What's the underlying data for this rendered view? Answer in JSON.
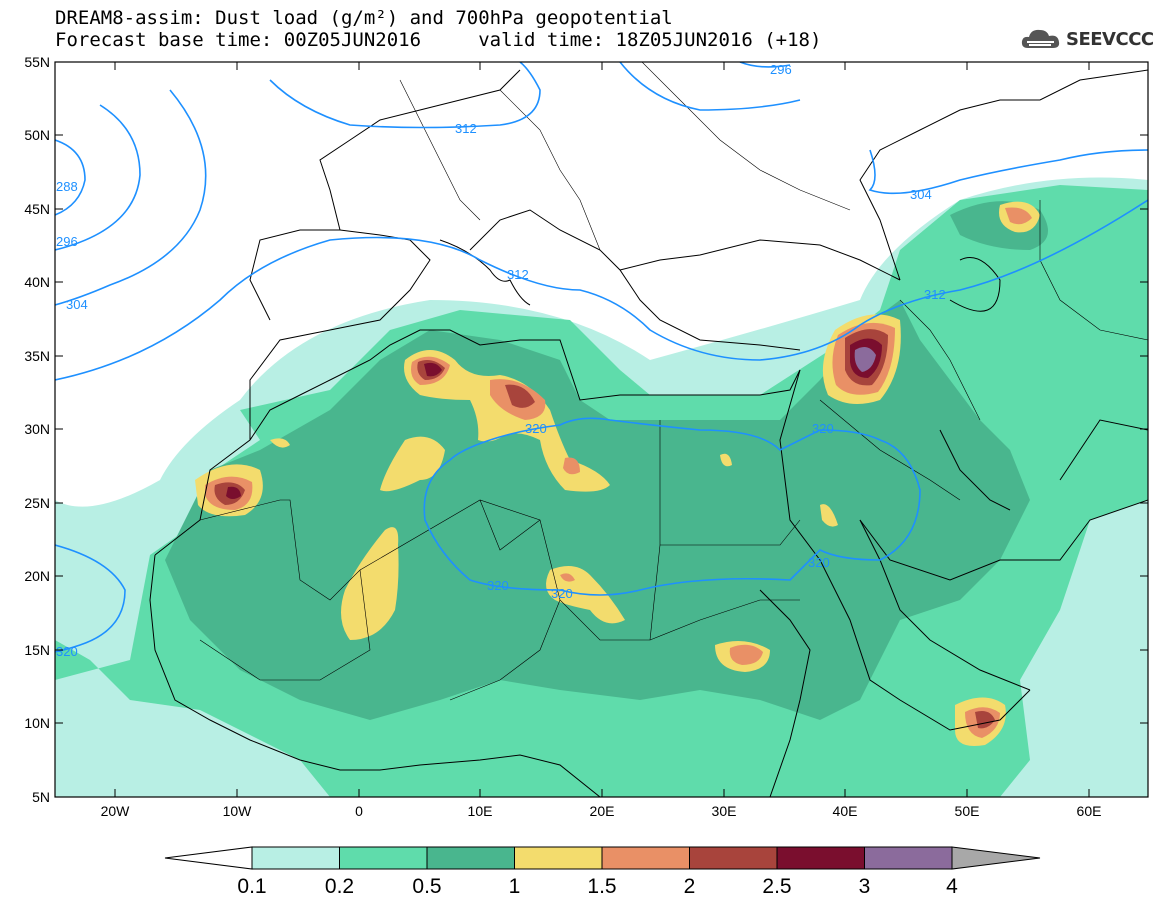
{
  "header": {
    "title_line1": "DREAM8-assim: Dust load (g/m²) and 700hPa geopotential",
    "title_line2": "Forecast base time: 00Z05JUN2016     valid time: 18Z05JUN2016 (+18)",
    "brand": "SEEVCCC"
  },
  "map": {
    "lat_labels": [
      "55N",
      "50N",
      "45N",
      "40N",
      "35N",
      "30N",
      "25N",
      "20N",
      "15N",
      "10N",
      "5N"
    ],
    "lon_labels": [
      "20W",
      "10W",
      "0",
      "10E",
      "20E",
      "30E",
      "40E",
      "50E",
      "60E"
    ],
    "contour_labels": [
      "296",
      "312",
      "288",
      "296",
      "304",
      "312",
      "304",
      "312",
      "320",
      "320",
      "320",
      "320",
      "320",
      "320"
    ]
  },
  "colorbar": {
    "labels": [
      "0.1",
      "0.2",
      "0.5",
      "1",
      "1.5",
      "2",
      "2.5",
      "3",
      "4"
    ],
    "colors": [
      "#b8efe4",
      "#5fdcab",
      "#49b68e",
      "#f3dc6d",
      "#e99066",
      "#a8443c",
      "#7a0e2e",
      "#8b6b9c",
      "#a8a8a8"
    ]
  },
  "colors": {
    "geopotential_line": "#1e90ff",
    "background": "#ffffff"
  }
}
